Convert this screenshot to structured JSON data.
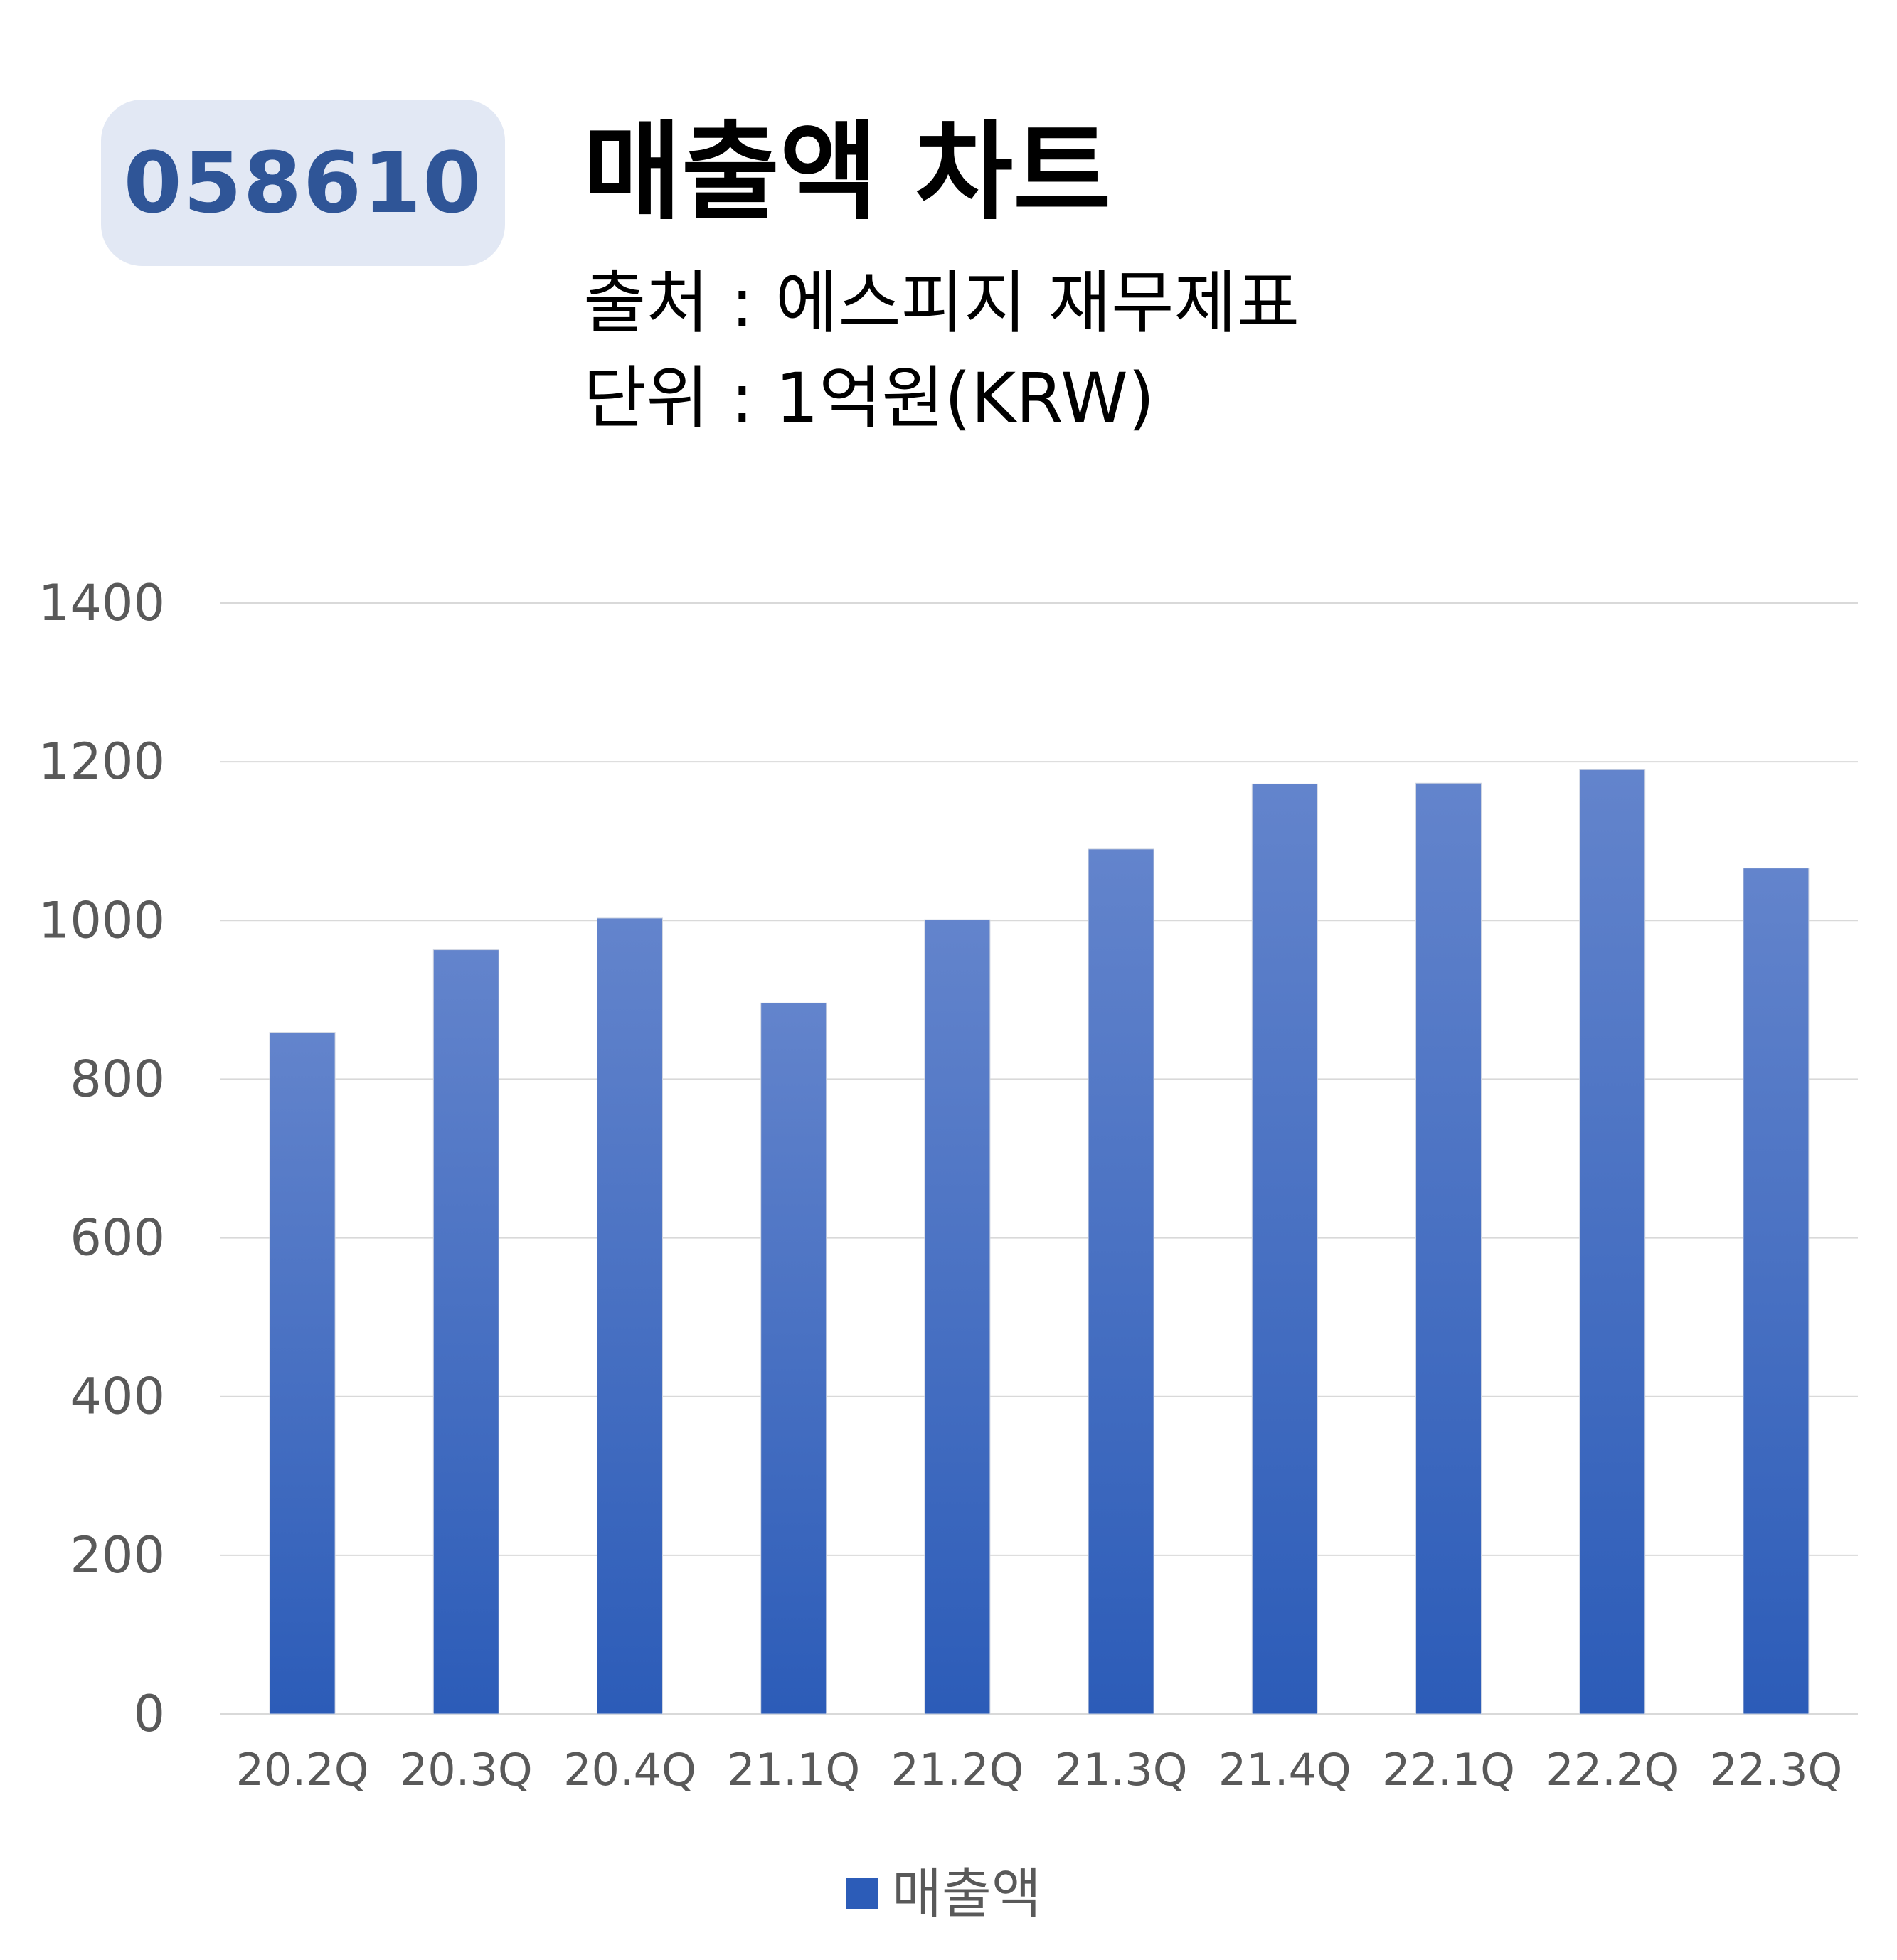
{
  "header": {
    "ticker": "058610",
    "title": "매출액 차트",
    "source": "출처 : 에스피지 재무제표",
    "unit": "단위 : 1억원(KRW)"
  },
  "colors": {
    "badge_bg": "#e2e8f4",
    "badge_text": "#2f5597",
    "bar_top": "#6384cc",
    "bar_bottom": "#2c5cb8",
    "grid": "#d9d9d9",
    "tick_text": "#595959"
  },
  "chart_data": {
    "type": "bar",
    "title": "",
    "xlabel": "",
    "ylabel": "",
    "categories": [
      "20.2Q",
      "20.3Q",
      "20.4Q",
      "21.1Q",
      "21.2Q",
      "21.3Q",
      "21.4Q",
      "22.1Q",
      "22.2Q",
      "22.3Q"
    ],
    "series": [
      {
        "name": "매출액",
        "values": [
          859,
          963,
          1003,
          896,
          1001,
          1090,
          1172,
          1173,
          1190,
          1066
        ]
      }
    ],
    "yticks": [
      "0",
      "200",
      "400",
      "600",
      "800",
      "1000",
      "1200",
      "1400"
    ],
    "ylim": [
      0,
      1400
    ],
    "grid": true,
    "legend": "bottom-center"
  }
}
